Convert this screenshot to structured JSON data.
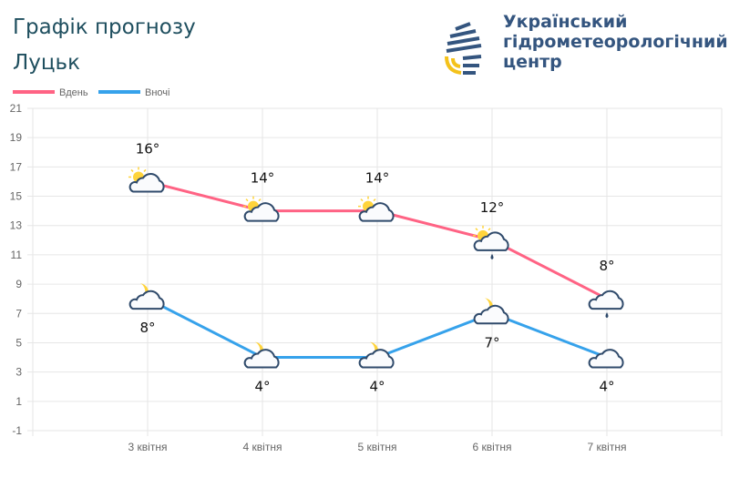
{
  "header": {
    "title": "Графік прогнозу",
    "city": "Луцьк"
  },
  "logo": {
    "line1": "Український",
    "line2": "гідрометеорологічний",
    "line3": "центр"
  },
  "colors": {
    "day": "#ff6384",
    "night": "#36a2eb",
    "cloud": "#2f4a6b",
    "sun": "#ffd43b"
  },
  "chart_data": {
    "type": "line",
    "categories": [
      "3 квітня",
      "4 квітня",
      "5 квітня",
      "6 квітня",
      "7 квітня"
    ],
    "series": [
      {
        "name": "Вдень",
        "values": [
          16,
          14,
          14,
          12,
          8
        ],
        "labels": [
          "16°",
          "14°",
          "14°",
          "12°",
          "8°"
        ],
        "icons": [
          "sun-cloud",
          "sun-cloud",
          "sun-cloud",
          "sun-cloud-rain",
          "cloud-rain"
        ]
      },
      {
        "name": "Вночі",
        "values": [
          8,
          4,
          4,
          7,
          4
        ],
        "labels": [
          "8°",
          "4°",
          "4°",
          "7°",
          "4°"
        ],
        "icons": [
          "moon-cloud",
          "moon-cloud",
          "moon-cloud",
          "moon-cloud",
          "cloud"
        ]
      }
    ],
    "yticks": [
      -1,
      1,
      3,
      5,
      7,
      9,
      11,
      13,
      15,
      17,
      19,
      21
    ],
    "ylim": [
      -1,
      21
    ],
    "grid": true,
    "legend": "top-left"
  }
}
